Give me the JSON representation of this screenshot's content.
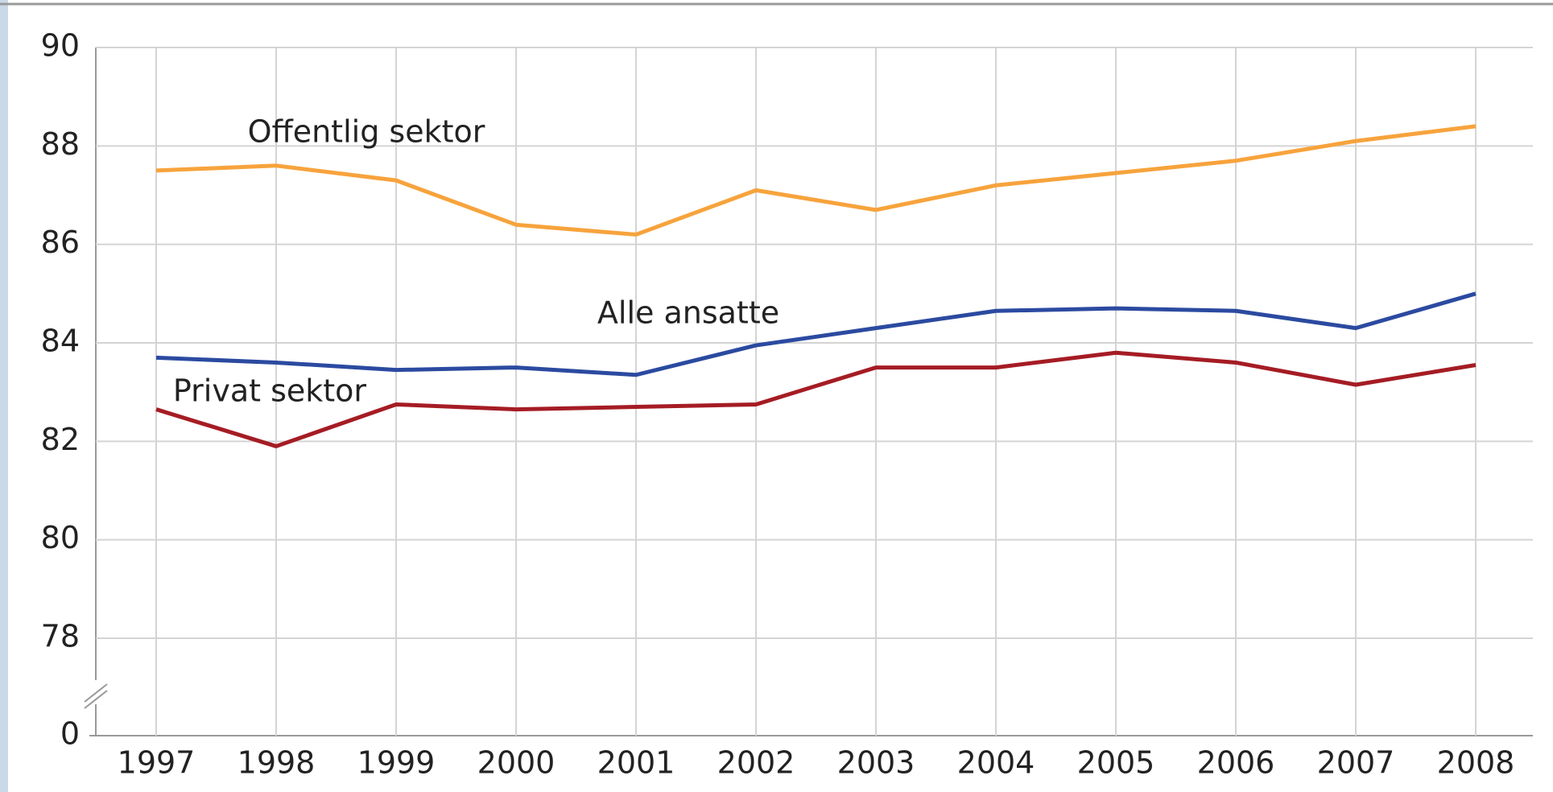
{
  "chart_data": {
    "type": "line",
    "categories": [
      "1997",
      "1998",
      "1999",
      "2000",
      "2001",
      "2002",
      "2003",
      "2004",
      "2005",
      "2006",
      "2007",
      "2008"
    ],
    "series": [
      {
        "name": "Offentlig sektor",
        "color": "#f7a33c",
        "values": [
          87.5,
          87.6,
          87.3,
          86.4,
          86.2,
          87.1,
          86.7,
          87.2,
          87.45,
          87.7,
          88.1,
          88.4
        ]
      },
      {
        "name": "Alle ansatte",
        "color": "#2b4aa0",
        "values": [
          83.7,
          83.6,
          83.45,
          83.5,
          83.35,
          83.95,
          84.3,
          84.65,
          84.7,
          84.65,
          84.3,
          85.0
        ]
      },
      {
        "name": "Privat sektor",
        "color": "#a51c24",
        "values": [
          82.65,
          81.9,
          82.75,
          82.65,
          82.7,
          82.75,
          83.5,
          83.5,
          83.8,
          83.6,
          83.15,
          83.55
        ]
      }
    ],
    "ylim": [
      0,
      90
    ],
    "yticks": [
      0,
      78,
      80,
      82,
      84,
      86,
      88,
      90
    ],
    "axis_break": true,
    "grid": true
  }
}
